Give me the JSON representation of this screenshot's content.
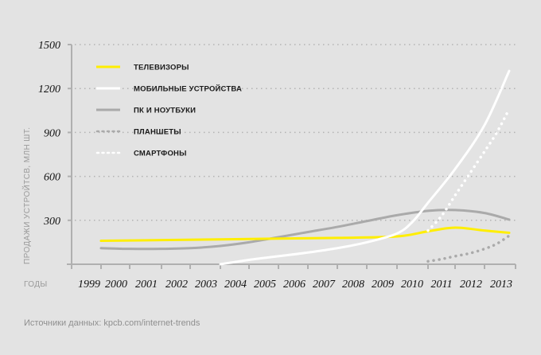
{
  "chart_data": {
    "type": "line",
    "title": "",
    "xlabel": "ГОДЫ",
    "ylabel": "ПРОДАЖИ УСТРОЙТСВ, МЛН ШТ.",
    "ylim": [
      0,
      1500
    ],
    "xlim": [
      1999,
      2013
    ],
    "y_ticks": [
      300,
      600,
      900,
      1200,
      1500
    ],
    "y_tick_labels": [
      "300",
      "600",
      "900",
      "1200",
      "1500"
    ],
    "x_ticks": [
      1999,
      2000,
      2001,
      2002,
      2003,
      2004,
      2005,
      2006,
      2007,
      2008,
      2009,
      2010,
      2011,
      2012,
      2013
    ],
    "x_tick_labels": [
      "1999",
      "2000",
      "2001",
      "2002",
      "2003",
      "2004",
      "2005",
      "2006",
      "2007",
      "2008",
      "2009",
      "2010",
      "2011",
      "2012",
      "2013"
    ],
    "grid": "horizontal-dotted",
    "legend_position": "top-left",
    "series": [
      {
        "name": "ТЕЛЕВИЗОРЫ",
        "style": "solid",
        "color": "#ffee00",
        "x": [
          1999,
          2001,
          2003,
          2005,
          2007,
          2009,
          2010,
          2011,
          2012,
          2013
        ],
        "values": [
          160,
          165,
          170,
          175,
          180,
          190,
          225,
          250,
          230,
          215
        ]
      },
      {
        "name": "МОБИЛЬНЫЕ УСТРОЙСТВА",
        "style": "solid",
        "color": "#ffffff",
        "x": [
          2003,
          2004,
          2005,
          2006,
          2007,
          2008,
          2009,
          2009.5,
          2010,
          2011,
          2012,
          2013
        ],
        "values": [
          0,
          30,
          55,
          80,
          110,
          150,
          210,
          290,
          420,
          650,
          950,
          1320
        ]
      },
      {
        "name": "ПК И НОУТБУКИ",
        "style": "solid",
        "color": "#aaaaaa",
        "x": [
          1999,
          2000,
          2001,
          2002,
          2003,
          2004,
          2005,
          2006,
          2007,
          2008,
          2009,
          2010,
          2011,
          2012,
          2013
        ],
        "values": [
          110,
          105,
          105,
          110,
          125,
          150,
          185,
          220,
          255,
          295,
          335,
          365,
          370,
          350,
          305
        ]
      },
      {
        "name": "ПЛАНШЕТЫ",
        "style": "dotted",
        "color": "#aaaaaa",
        "x": [
          2010,
          2010.5,
          2011,
          2011.5,
          2012,
          2012.5,
          2013
        ],
        "values": [
          20,
          35,
          55,
          75,
          105,
          140,
          195
        ]
      },
      {
        "name": "СМАРТФОНЫ",
        "style": "dotted",
        "color": "#ffffff",
        "x": [
          2010,
          2010.5,
          2011,
          2011.5,
          2012,
          2012.5,
          2013
        ],
        "values": [
          230,
          330,
          470,
          620,
          770,
          900,
          1060
        ]
      }
    ]
  },
  "source_text": "Источники данных: kpcb.com/internet-trends"
}
